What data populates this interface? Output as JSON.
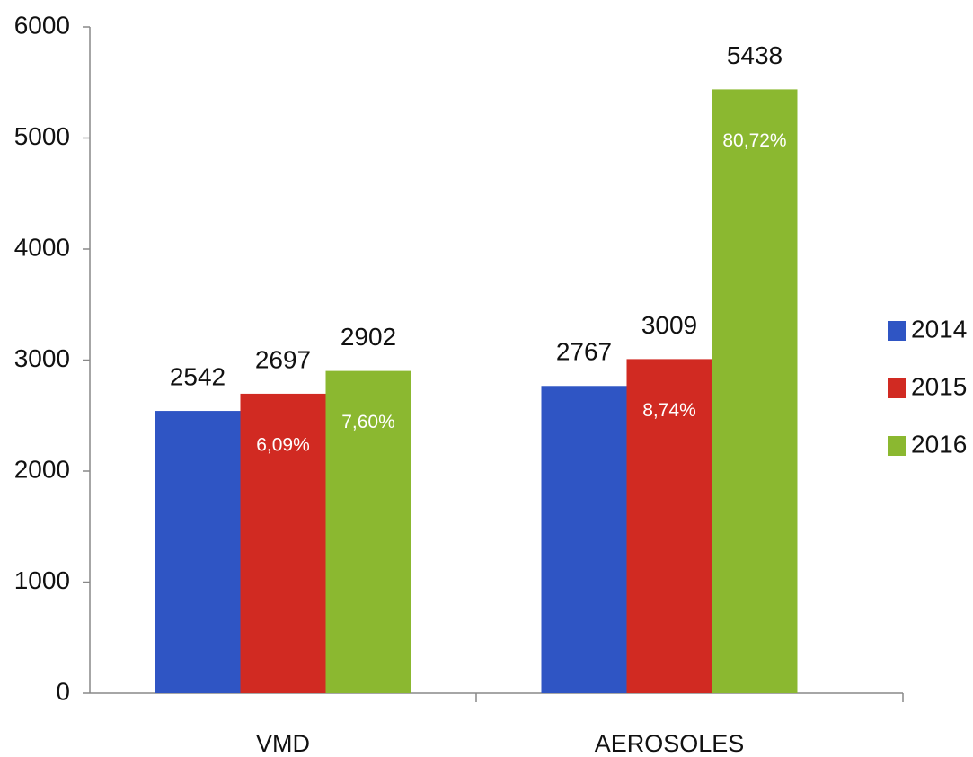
{
  "chart_data": {
    "type": "bar",
    "categories": [
      "VMD",
      "AEROSOLES"
    ],
    "series": [
      {
        "name": "2014",
        "color": "#2f55c4",
        "values": [
          2542,
          2767
        ]
      },
      {
        "name": "2015",
        "color": "#d12a22",
        "values": [
          2697,
          3009
        ],
        "annotations": [
          "6,09%",
          "8,74%"
        ]
      },
      {
        "name": "2016",
        "color": "#8bb830",
        "values": [
          2902,
          5438
        ],
        "annotations": [
          "7,60%",
          "80,72%"
        ]
      }
    ],
    "ylim": [
      0,
      6000
    ],
    "yticks": [
      0,
      1000,
      2000,
      3000,
      4000,
      5000,
      6000
    ],
    "grid": false,
    "legend": "right"
  }
}
